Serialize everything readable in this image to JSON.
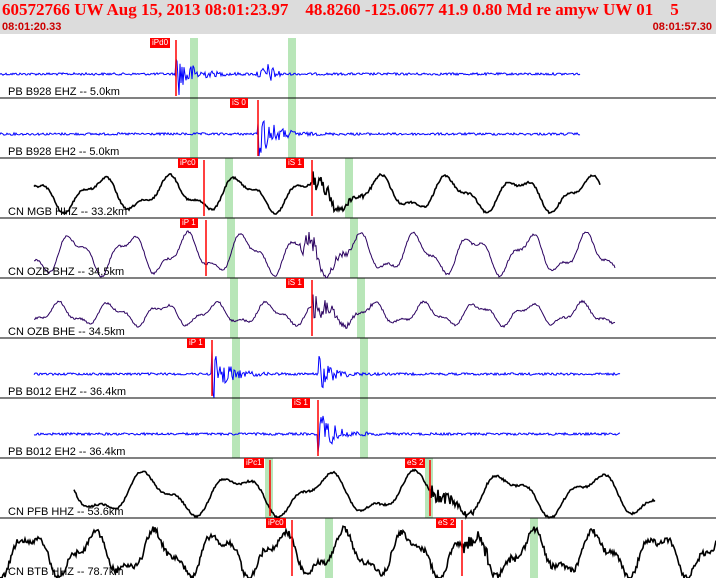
{
  "header": {
    "title": "60572766 UW Aug 15, 2013 08:01:23.97    48.8260 -125.0677 41.9 0.80 Md re amyw UW 01    5",
    "start_time": "08:01:20.33",
    "end_time": "08:01:57.30"
  },
  "colors": {
    "header_bg": "#dcdcdc",
    "title": "#ff0000",
    "pick_box": "#ff0000",
    "blue_trace": "#0000ff",
    "black_trace": "#000000",
    "purple_trace": "#2a0060",
    "predicted_band": "#b8e6b8"
  },
  "traces": [
    {
      "label": "PB B928 EHZ -- 5.0km",
      "color": "blue",
      "picks": [
        "iPd0"
      ]
    },
    {
      "label": "PB B928 EH2 -- 5.0km",
      "color": "blue",
      "picks": [
        "iS 0"
      ]
    },
    {
      "label": "CN MGB HHZ -- 33.2km",
      "color": "black",
      "picks": [
        "iPc0",
        "iS 1"
      ]
    },
    {
      "label": "CN OZB BHZ -- 34.5km",
      "color": "purple",
      "picks": [
        "iP 1"
      ]
    },
    {
      "label": "CN OZB BHE -- 34.5km",
      "color": "purple",
      "picks": [
        "iS 1"
      ]
    },
    {
      "label": "PB B012 EHZ -- 36.4km",
      "color": "blue",
      "picks": [
        "iP 1"
      ]
    },
    {
      "label": "PB B012 EH2 -- 36.4km",
      "color": "blue",
      "picks": [
        "iS 1"
      ]
    },
    {
      "label": "CN PFB HHZ -- 53.6km",
      "color": "black",
      "picks": [
        "iPc1",
        "eS 2"
      ]
    },
    {
      "label": "CN BTB HHZ -- 78.7km",
      "color": "black",
      "picks": [
        "iPc0",
        "eS 2"
      ]
    }
  ]
}
